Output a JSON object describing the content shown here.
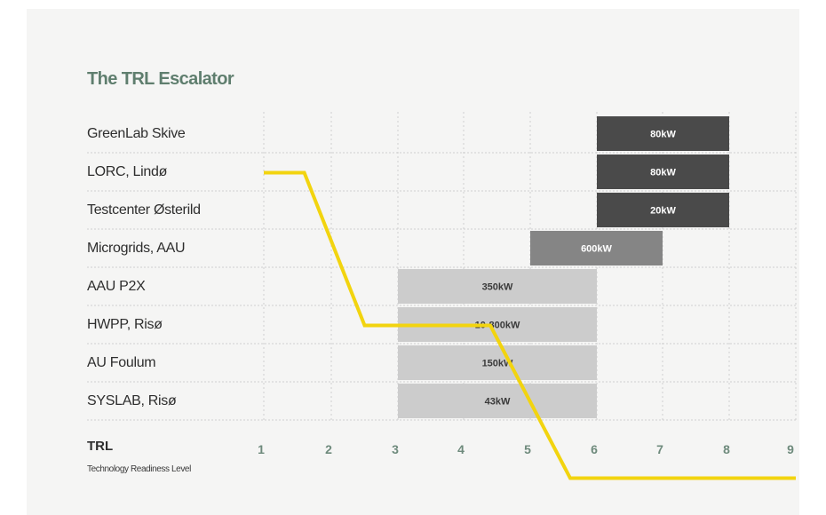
{
  "chart_data": {
    "type": "bar",
    "title": "The TRL Escalator",
    "x_axis_label": "TRL",
    "x_axis_sublabel": "Technology Readiness Level",
    "x_ticks": [
      1,
      2,
      3,
      4,
      5,
      6,
      7,
      8,
      9
    ],
    "xlim": [
      1,
      9
    ],
    "grid": "vertical dashed lines at each TRL level",
    "rows": [
      {
        "label": "GreenLab Skive",
        "start": 6,
        "end": 8,
        "value_label": "80kW",
        "color": "#4a4a4a"
      },
      {
        "label": "LORC, Lindø",
        "start": 6,
        "end": 8,
        "value_label": "80kW",
        "color": "#4a4a4a"
      },
      {
        "label": "Testcenter Østerild",
        "start": 6,
        "end": 8,
        "value_label": "20kW",
        "color": "#4a4a4a"
      },
      {
        "label": "Microgrids, AAU",
        "start": 5,
        "end": 7,
        "value_label": "600kW",
        "color": "#858585"
      },
      {
        "label": "AAU P2X",
        "start": 3,
        "end": 6,
        "value_label": "350kW",
        "color": "#cccccc"
      },
      {
        "label": "HWPP, Risø",
        "start": 3,
        "end": 6,
        "value_label": "10-800kW",
        "color": "#cccccc"
      },
      {
        "label": "AU Foulum",
        "start": 3,
        "end": 6,
        "value_label": "150kW",
        "color": "#cccccc"
      },
      {
        "label": "SYSLAB, Risø",
        "start": 3,
        "end": 6,
        "value_label": "43kW",
        "color": "#cccccc"
      }
    ],
    "escalator_line": {
      "color": "#f2d40f",
      "points": [
        [
          1,
          1.5
        ],
        [
          1.6,
          1.5
        ],
        [
          2.5,
          5.5
        ],
        [
          4.4,
          5.5
        ],
        [
          5.6,
          9.5
        ],
        [
          9,
          9.5
        ]
      ]
    },
    "colors": {
      "title": "#5f7e6e",
      "tick_labels": "#6e8a7c",
      "background": "#f5f5f4"
    }
  }
}
